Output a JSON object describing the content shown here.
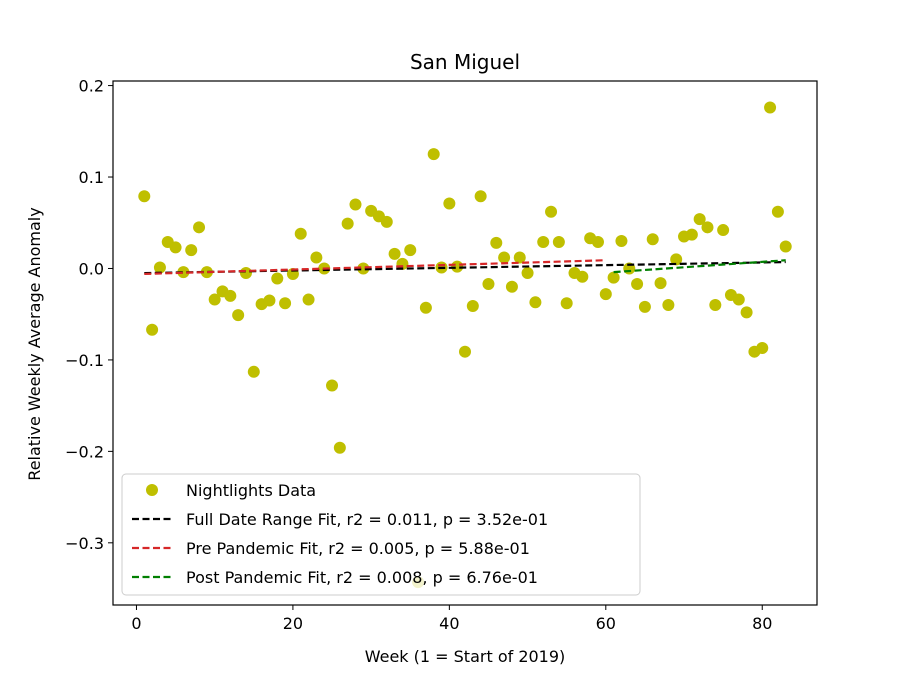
{
  "chart_data": {
    "type": "scatter",
    "title": "San Miguel",
    "xlabel": "Week (1 = Start of 2019)",
    "ylabel": "Relative Weekly Average Anomaly",
    "xlim": [
      -3,
      87
    ],
    "ylim": [
      -0.368,
      0.205
    ],
    "xticks": [
      0,
      20,
      40,
      60,
      80
    ],
    "xtick_labels": [
      "0",
      "20",
      "40",
      "60",
      "80"
    ],
    "yticks": [
      -0.3,
      -0.2,
      -0.1,
      0.0,
      0.1,
      0.2
    ],
    "ytick_labels": [
      "−0.3",
      "−0.2",
      "−0.1",
      "0.0",
      "0.1",
      "0.2"
    ],
    "grid": false,
    "legend_position": "lower-left",
    "series": [
      {
        "name": "Nightlights Data",
        "kind": "scatter",
        "color": "#bfbf00",
        "points": [
          [
            1,
            0.079
          ],
          [
            2,
            -0.067
          ],
          [
            3,
            0.001
          ],
          [
            4,
            0.029
          ],
          [
            5,
            0.023
          ],
          [
            6,
            -0.004
          ],
          [
            7,
            0.02
          ],
          [
            8,
            0.045
          ],
          [
            9,
            -0.004
          ],
          [
            10,
            -0.034
          ],
          [
            11,
            -0.025
          ],
          [
            12,
            -0.03
          ],
          [
            13,
            -0.051
          ],
          [
            14,
            -0.005
          ],
          [
            15,
            -0.113
          ],
          [
            16,
            -0.039
          ],
          [
            17,
            -0.035
          ],
          [
            18,
            -0.011
          ],
          [
            19,
            -0.038
          ],
          [
            20,
            -0.006
          ],
          [
            21,
            0.038
          ],
          [
            22,
            -0.034
          ],
          [
            23,
            0.012
          ],
          [
            24,
            0.0
          ],
          [
            25,
            -0.128
          ],
          [
            26,
            -0.196
          ],
          [
            27,
            0.049
          ],
          [
            28,
            0.07
          ],
          [
            29,
            0.0
          ],
          [
            30,
            0.063
          ],
          [
            31,
            0.057
          ],
          [
            32,
            0.051
          ],
          [
            33,
            0.016
          ],
          [
            34,
            0.005
          ],
          [
            35,
            0.02
          ],
          [
            36,
            -0.343
          ],
          [
            37,
            -0.043
          ],
          [
            38,
            0.125
          ],
          [
            39,
            0.001
          ],
          [
            40,
            0.071
          ],
          [
            41,
            0.002
          ],
          [
            42,
            -0.091
          ],
          [
            43,
            -0.041
          ],
          [
            44,
            0.079
          ],
          [
            45,
            -0.017
          ],
          [
            46,
            0.028
          ],
          [
            47,
            0.012
          ],
          [
            48,
            -0.02
          ],
          [
            49,
            0.012
          ],
          [
            50,
            -0.005
          ],
          [
            51,
            -0.037
          ],
          [
            52,
            0.029
          ],
          [
            53,
            0.062
          ],
          [
            54,
            0.029
          ],
          [
            55,
            -0.038
          ],
          [
            56,
            -0.005
          ],
          [
            57,
            -0.009
          ],
          [
            58,
            0.033
          ],
          [
            59,
            0.029
          ],
          [
            60,
            -0.028
          ],
          [
            61,
            -0.01
          ],
          [
            62,
            0.03
          ],
          [
            63,
            0.0
          ],
          [
            64,
            -0.017
          ],
          [
            65,
            -0.042
          ],
          [
            66,
            0.032
          ],
          [
            67,
            -0.016
          ],
          [
            68,
            -0.04
          ],
          [
            69,
            0.01
          ],
          [
            70,
            0.035
          ],
          [
            71,
            0.037
          ],
          [
            72,
            0.054
          ],
          [
            73,
            0.045
          ],
          [
            74,
            -0.04
          ],
          [
            75,
            0.042
          ],
          [
            76,
            -0.029
          ],
          [
            77,
            -0.034
          ],
          [
            78,
            -0.048
          ],
          [
            79,
            -0.091
          ],
          [
            80,
            -0.087
          ],
          [
            81,
            0.176
          ],
          [
            82,
            0.062
          ],
          [
            83,
            0.024
          ]
        ]
      },
      {
        "name": "Full Date Range Fit, r2 = 0.011, p = 3.52e-01",
        "kind": "line",
        "color": "#000000",
        "points": [
          [
            1,
            -0.005
          ],
          [
            83,
            0.007
          ]
        ]
      },
      {
        "name": "Pre Pandemic Fit, r2 = 0.005, p = 5.88e-01",
        "kind": "line",
        "color": "#d62728",
        "points": [
          [
            1,
            -0.006
          ],
          [
            60,
            0.009
          ]
        ]
      },
      {
        "name": "Post Pandemic Fit, r2 = 0.008, p = 6.76e-01",
        "kind": "line",
        "color": "#007f00",
        "points": [
          [
            61,
            -0.004
          ],
          [
            83,
            0.009
          ]
        ]
      }
    ]
  }
}
